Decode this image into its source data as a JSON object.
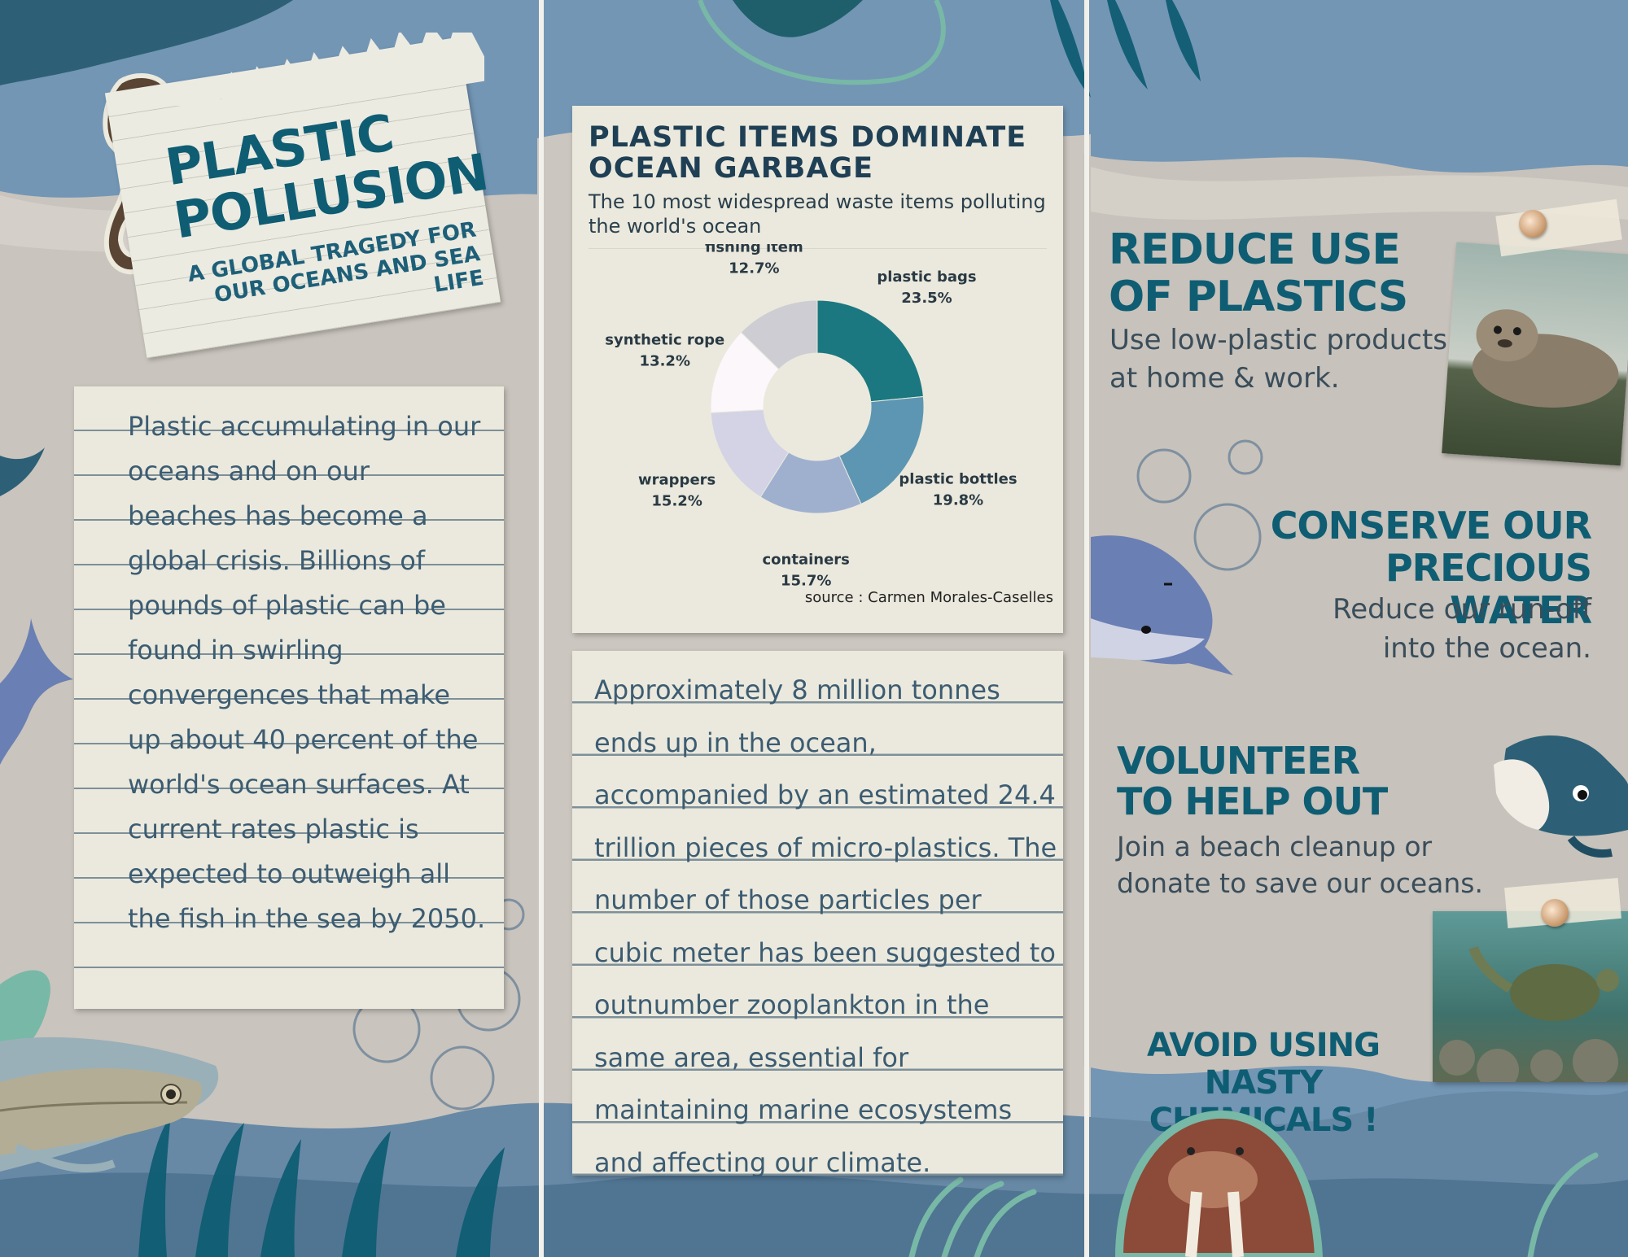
{
  "title": {
    "main": "PLASTIC POLLUSION",
    "sub": "A GLOBAL TRAGEDY FOR OUR OCEANS AND SEA LIFE"
  },
  "left_note": {
    "text": "Plastic accumulating in our oceans and on our beaches has become a global crisis. Billions of pounds of plastic can be found in swirling convergences that make up about 40 percent of the world's ocean surfaces. At current rates plastic is expected to outweigh all the fish in the sea by 2050."
  },
  "chart_card": {
    "source": "source : Carmen Morales-Caselles"
  },
  "chart_data": {
    "type": "pie",
    "donut": true,
    "title": "PLASTIC ITEMS DOMINATE OCEAN GARBAGE",
    "subtitle": "The 10 most widespread waste items polluting the world's ocean",
    "slices": [
      {
        "label": "plastic bags",
        "value": 23.5,
        "value_label": "23.5%",
        "color": "#1b7880"
      },
      {
        "label": "plastic bottles",
        "value": 19.8,
        "value_label": "19.8%",
        "color": "#5d96b2"
      },
      {
        "label": "containers",
        "value": 15.7,
        "value_label": "15.7%",
        "color": "#9fb0cf"
      },
      {
        "label": "wrappers",
        "value": 15.2,
        "value_label": "15.2%",
        "color": "#d3d3e5"
      },
      {
        "label": "synthetic rope",
        "value": 13.2,
        "value_label": "13.2%",
        "color": "#fbf7fb"
      },
      {
        "label": "fishing item",
        "value": 12.7,
        "value_label": "12.7%",
        "color": "#cdcdd3"
      }
    ]
  },
  "mid_note": {
    "text": "Approximately 8 million tonnes ends up in the ocean, accompanied by an estimated 24.4 trillion pieces of micro-plastics. The number of those particles per cubic meter has been suggested to outnumber zooplankton in the same area, essential for maintaining marine ecosystems and affecting our climate."
  },
  "tips": [
    {
      "heading": "REDUCE USE OF PLASTICS",
      "text": "Use low-plastic products at home & work."
    },
    {
      "heading": "CONSERVE OUR PRECIOUS WATER",
      "text": "Reduce our run-off into the ocean."
    },
    {
      "heading": "VOLUNTEER TO HELP OUT",
      "text": "Join a beach cleanup or donate to save our oceans."
    },
    {
      "heading": "AVOID USING NASTY CHEMICALS !",
      "text": ""
    }
  ],
  "decor": {
    "seahorse": "seahorse-picture",
    "seal": "seal-picture",
    "dolphin": "dolphin-illustration",
    "whale": "whale-illustration",
    "turtle": "sea-turtle-picture",
    "walrus": "walrus-picture",
    "fish": "fish-picture",
    "accent_dark": "#0f5d73",
    "accent_light": "#78b8a6",
    "paper": "#ebe9dd"
  }
}
